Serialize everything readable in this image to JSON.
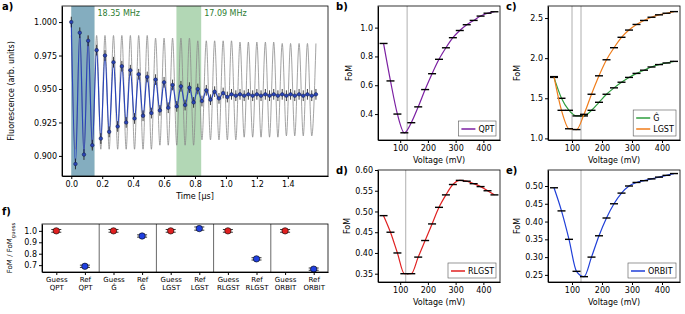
{
  "chart_data": [
    {
      "panel": "a)",
      "type": "line",
      "xlabel": "Time [µs]",
      "ylabel": "Fluorescence (arb. units)",
      "xlim": [
        -0.06,
        1.66
      ],
      "ylim": [
        0.885,
        1.012
      ],
      "xticks": [
        {
          "value": 0,
          "label": "0.0"
        },
        0.2,
        0.4,
        0.6,
        0.8,
        {
          "value": 1,
          "label": "1.0"
        },
        1.2,
        1.4
      ],
      "yticks": [
        {
          "value": 0.9,
          "label": "0.900"
        },
        0.925,
        {
          "value": 0.95,
          "label": "0.950"
        },
        0.975,
        {
          "value": 1,
          "label": "1.000"
        }
      ],
      "x": [
        0,
        0.027,
        0.055,
        0.082,
        0.109,
        0.136,
        0.164,
        0.191,
        0.218,
        0.245,
        0.273,
        0.3,
        0.327,
        0.355,
        0.382,
        0.409,
        0.436,
        0.464,
        0.491,
        0.518,
        0.545,
        0.573,
        0.6,
        0.627,
        0.655,
        0.682,
        0.709,
        0.736,
        0.764,
        0.791,
        0.818,
        0.845,
        0.873,
        0.9,
        0.927,
        0.955,
        0.982,
        1.009,
        1.036,
        1.064,
        1.091,
        1.118,
        1.145,
        1.173,
        1.2,
        1.227,
        1.255,
        1.282,
        1.309,
        1.336,
        1.364,
        1.391,
        1.418,
        1.445,
        1.473,
        1.5,
        1.527,
        1.555,
        1.582
      ],
      "series": [
        {
          "color": "#8c8c8c",
          "marker": "none",
          "line_style": "solid",
          "values": [
            0.99,
            0.905,
            0.99,
            0.905,
            0.99,
            0.905,
            0.99,
            0.905,
            0.99,
            0.905,
            0.99,
            0.905,
            0.99,
            0.905,
            0.99,
            0.905,
            0.99,
            0.905,
            0.99,
            0.905,
            0.988,
            0.908,
            0.988,
            0.908,
            0.988,
            0.908,
            0.988,
            0.908,
            0.988,
            0.908,
            0.986,
            0.912,
            0.986,
            0.912,
            0.986,
            0.912,
            0.986,
            0.912,
            0.986,
            0.912,
            0.985,
            0.914,
            0.985,
            0.914,
            0.985,
            0.914,
            0.985,
            0.914,
            0.985,
            0.914,
            0.984,
            0.915,
            0.984,
            0.915,
            0.984,
            0.915,
            0.984,
            0.915,
            0.984
          ]
        },
        {
          "color": "#2a45b8",
          "marker": "circle",
          "line_style": "solid",
          "values": [
            1.0,
            0.894,
            0.992,
            0.901,
            0.986,
            0.908,
            0.979,
            0.913,
            0.975,
            0.918,
            0.97,
            0.922,
            0.967,
            0.925,
            0.964,
            0.928,
            0.961,
            0.93,
            0.959,
            0.932,
            0.957,
            0.934,
            0.955,
            0.936,
            0.953,
            0.937,
            0.952,
            0.938,
            0.951,
            0.94,
            0.95,
            0.941,
            0.949,
            0.942,
            0.948,
            0.943,
            0.947,
            0.944,
            0.946,
            0.945,
            0.946,
            0.945,
            0.946,
            0.945,
            0.946,
            0.945,
            0.946,
            0.945,
            0.946,
            0.945,
            0.946,
            0.945,
            0.946,
            0.945,
            0.946,
            0.945,
            0.946,
            0.945,
            0.946
          ],
          "errors": [
            0.004,
            0.004,
            0.004,
            0.004,
            0.004,
            0.004,
            0.004,
            0.004,
            0.004,
            0.004,
            0.004,
            0.004,
            0.004,
            0.004,
            0.004,
            0.004,
            0.004,
            0.004,
            0.004,
            0.004,
            0.004,
            0.004,
            0.004,
            0.004,
            0.004,
            0.004,
            0.004,
            0.004,
            0.004,
            0.004,
            0.004,
            0.004,
            0.004,
            0.004,
            0.004,
            0.004,
            0.004,
            0.004,
            0.004,
            0.004,
            0.004,
            0.004,
            0.004,
            0.004,
            0.004,
            0.004,
            0.004,
            0.004,
            0.004,
            0.004,
            0.004,
            0.004,
            0.004,
            0.004,
            0.004,
            0.004,
            0.004,
            0.004,
            0.004
          ]
        }
      ],
      "shaded": [
        {
          "start": 0,
          "end": 0.15,
          "label": "18.35 MHz",
          "color": "#3f9a45"
        },
        {
          "start": 0.68,
          "end": 0.84,
          "label": "17.09 MHz",
          "color": "#3f9a45"
        },
        {
          "start": 0,
          "end": 0.15,
          "color": "#3f6fd0"
        }
      ]
    },
    {
      "panel": "b)",
      "type": "line",
      "xlabel": "Voltage (mV)",
      "ylabel": "FoM",
      "xlim": [
        20,
        460
      ],
      "ylim": [
        0.22,
        1.15
      ],
      "xticks": [
        100,
        200,
        300,
        400
      ],
      "yticks": [
        0.4,
        0.6,
        0.8,
        {
          "value": 1,
          "label": "1.0"
        }
      ],
      "x": [
        40,
        65,
        90,
        115,
        140,
        165,
        190,
        215,
        240,
        265,
        290,
        315,
        340,
        365,
        390,
        415,
        440
      ],
      "series": [
        {
          "name": "QPT",
          "color": "#7b1fa2",
          "marker": "dash",
          "line_style": "solid",
          "values": [
            0.89,
            0.63,
            0.4,
            0.27,
            0.34,
            0.45,
            0.57,
            0.68,
            0.78,
            0.86,
            0.93,
            0.98,
            1.02,
            1.05,
            1.08,
            1.1,
            1.11
          ]
        }
      ],
      "vlines": [
        125
      ],
      "legend": "lower right"
    },
    {
      "panel": "c)",
      "type": "line",
      "xlabel": "Voltage (mV)",
      "ylabel": "FoM",
      "xlim": [
        20,
        460
      ],
      "ylim": [
        0.98,
        2.65
      ],
      "xticks": [
        100,
        200,
        300,
        400
      ],
      "yticks": [
        {
          "value": 1,
          "label": "1.0"
        },
        1.5,
        {
          "value": 2,
          "label": "2.0"
        },
        2.5
      ],
      "x": [
        40,
        65,
        90,
        115,
        140,
        165,
        190,
        215,
        240,
        265,
        290,
        315,
        340,
        365,
        390,
        415,
        440
      ],
      "series": [
        {
          "name": "Ĝ",
          "color": "#2e9e3e",
          "marker": "dash",
          "line_style": "solid",
          "values": [
            1.76,
            1.5,
            1.35,
            1.28,
            1.28,
            1.35,
            1.45,
            1.55,
            1.63,
            1.7,
            1.76,
            1.81,
            1.85,
            1.89,
            1.92,
            1.94,
            1.96
          ]
        },
        {
          "name": "LGST",
          "color": "#f07d1a",
          "marker": "dash",
          "line_style": "solid",
          "values": [
            1.77,
            1.35,
            1.12,
            1.11,
            1.3,
            1.55,
            1.78,
            1.98,
            2.13,
            2.26,
            2.35,
            2.42,
            2.47,
            2.51,
            2.54,
            2.56,
            2.58
          ]
        }
      ],
      "vlines": [
        100,
        130
      ],
      "legend": "lower right"
    },
    {
      "panel": "d)",
      "type": "line",
      "xlabel": "Voltage (mV)",
      "ylabel": "FoM",
      "xlim": [
        20,
        460
      ],
      "ylim": [
        0.33,
        0.6
      ],
      "xticks": [
        100,
        200,
        300,
        400
      ],
      "yticks": [
        0.35,
        {
          "value": 0.4,
          "label": "0.40"
        },
        0.45,
        {
          "value": 0.5,
          "label": "0.50"
        },
        0.55,
        {
          "value": 0.6,
          "label": "0.60"
        }
      ],
      "x": [
        40,
        65,
        90,
        115,
        140,
        165,
        190,
        215,
        240,
        265,
        290,
        315,
        340,
        365,
        390,
        415,
        440
      ],
      "series": [
        {
          "name": "RLGST",
          "color": "#e02020",
          "marker": "dash",
          "line_style": "solid",
          "values": [
            0.49,
            0.45,
            0.4,
            0.35,
            0.35,
            0.39,
            0.43,
            0.47,
            0.51,
            0.54,
            0.565,
            0.575,
            0.573,
            0.567,
            0.56,
            0.55,
            0.54
          ]
        }
      ],
      "vlines": [
        120
      ],
      "legend": "lower right"
    },
    {
      "panel": "e)",
      "type": "line",
      "xlabel": "Voltage (mV)",
      "ylabel": "FoM",
      "xlim": [
        20,
        460
      ],
      "ylim": [
        0.23,
        0.545
      ],
      "xticks": [
        100,
        200,
        300,
        400
      ],
      "yticks": [
        0.25,
        {
          "value": 0.3,
          "label": "0.30"
        },
        0.35,
        {
          "value": 0.4,
          "label": "0.40"
        },
        0.45,
        {
          "value": 0.5,
          "label": "0.50"
        }
      ],
      "x": [
        40,
        65,
        90,
        115,
        140,
        165,
        190,
        215,
        240,
        265,
        290,
        315,
        340,
        365,
        390,
        415,
        440
      ],
      "series": [
        {
          "name": "ORBIT",
          "color": "#1f3fd8",
          "marker": "dash",
          "line_style": "solid",
          "values": [
            0.495,
            0.43,
            0.35,
            0.26,
            0.245,
            0.3,
            0.36,
            0.41,
            0.45,
            0.48,
            0.5,
            0.51,
            0.515,
            0.52,
            0.525,
            0.53,
            0.535
          ]
        }
      ],
      "vlines": [
        130
      ],
      "legend": "lower right"
    },
    {
      "panel": "f)",
      "type": "scatter",
      "ylabel": "FoM / FoM",
      "ylabel_subscript": "guess",
      "ylim": [
        0.64,
        1.06
      ],
      "yticks": [
        0.7,
        0.8,
        0.9,
        {
          "value": 1,
          "label": "1.0"
        }
      ],
      "categories": [
        "Guess QPT",
        "Ref QPT",
        "Guess Ĝ",
        "Ref Ĝ",
        "Guess LGST",
        "Ref LGST",
        "Guess RLGST",
        "Ref RLGST",
        "Guess ORBIT",
        "Ref ORBIT"
      ],
      "values": [
        1,
        0.69,
        1,
        0.955,
        1,
        1.02,
        1,
        0.755,
        1,
        0.665
      ],
      "errors": [
        0.012,
        0.01,
        0.012,
        0.01,
        0.012,
        0.014,
        0.012,
        0.01,
        0.012,
        0.01
      ],
      "colors": [
        "#e02020",
        "#2040e0",
        "#e02020",
        "#2040e0",
        "#e02020",
        "#2040e0",
        "#e02020",
        "#2040e0",
        "#e02020",
        "#2040e0"
      ],
      "marker": "circle"
    }
  ]
}
